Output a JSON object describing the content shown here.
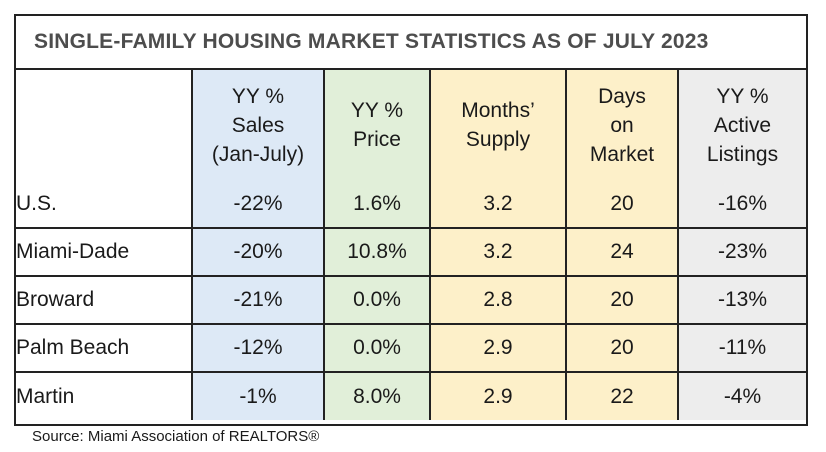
{
  "title": "SINGLE-FAMILY HOUSING MARKET STATISTICS AS OF JULY 2023",
  "source": "Source: Miami Association of REALTORS®",
  "colors": {
    "sales": "#dde9f6",
    "price": "#e1efd9",
    "supply": "#fdf0c9",
    "days": "#fdf0c9",
    "listings": "#ededed"
  },
  "chart_data": {
    "type": "table",
    "title": "SINGLE-FAMILY HOUSING MARKET STATISTICS AS OF JULY 2023",
    "columns": [
      {
        "key": "sales",
        "header_lines": [
          "YY  %",
          "Sales",
          "(Jan-July)"
        ]
      },
      {
        "key": "price",
        "header_lines": [
          "YY %",
          "Price"
        ]
      },
      {
        "key": "supply",
        "header_lines": [
          "Months’",
          "Supply"
        ]
      },
      {
        "key": "days",
        "header_lines": [
          "Days",
          "on",
          "Market"
        ]
      },
      {
        "key": "listings",
        "header_lines": [
          "YY %",
          "Active",
          "Listings"
        ]
      }
    ],
    "rows": [
      {
        "region": "U.S.",
        "values": [
          "-22%",
          "1.6%",
          "3.2",
          "20",
          "-16%"
        ]
      },
      {
        "region": "Miami-Dade",
        "values": [
          "-20%",
          "10.8%",
          "3.2",
          "24",
          "-23%"
        ]
      },
      {
        "region": "Broward",
        "values": [
          "-21%",
          "0.0%",
          "2.8",
          "20",
          "-13%"
        ]
      },
      {
        "region": "Palm Beach",
        "values": [
          "-12%",
          "0.0%",
          "2.9",
          "20",
          "-11%"
        ]
      },
      {
        "region": "Martin",
        "values": [
          "-1%",
          "8.0%",
          "2.9",
          "22",
          "-4%"
        ]
      }
    ],
    "source": "Source: Miami Association of REALTORS®"
  }
}
